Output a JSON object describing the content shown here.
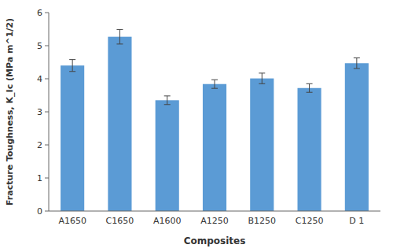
{
  "chart_data": {
    "type": "bar",
    "categories": [
      "A1650",
      "C1650",
      "A1600",
      "A1250",
      "B1250",
      "C1250",
      "D 1"
    ],
    "values": [
      4.4,
      5.27,
      3.35,
      3.84,
      4.01,
      3.72,
      4.47
    ],
    "errors": [
      0.18,
      0.22,
      0.13,
      0.13,
      0.16,
      0.13,
      0.16
    ],
    "color": "#5B9BD5",
    "x_label": "Composites",
    "y_label": "Fracture Toughness, K_Ic (MPa m^1/2)",
    "ylim": [
      0,
      6
    ],
    "yticks": [
      0,
      1,
      2,
      3,
      4,
      5,
      6
    ],
    "grid": false
  }
}
